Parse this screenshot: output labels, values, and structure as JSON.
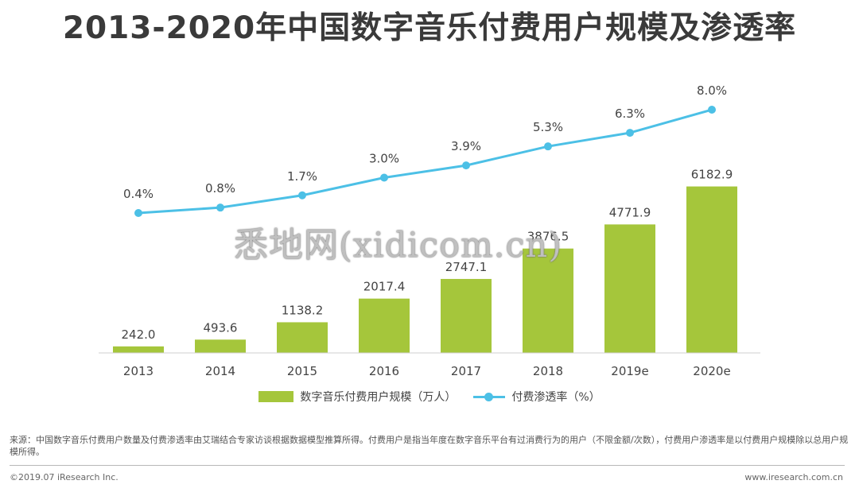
{
  "page": {
    "title": "2013-2020年中国数字音乐付费用户规模及渗透率",
    "watermark": "悉地网(xidicom.cn)",
    "footnote": "来源：中国数字音乐付费用户数量及付费渗透率由艾瑞结合专家访谈根据数据模型推算所得。付费用户是指当年度在数字音乐平台有过消费行为的用户（不限金额/次数），付费用户渗透率是以付费用户规模除以总用户规模所得。",
    "copyright": "©2019.07 iResearch Inc.",
    "site": "www.iresearch.com.cn"
  },
  "chart_data": {
    "type": "bar",
    "title": "2013-2020年中国数字音乐付费用户规模及渗透率",
    "categories": [
      "2013",
      "2014",
      "2015",
      "2016",
      "2017",
      "2018",
      "2019e",
      "2020e"
    ],
    "series": [
      {
        "name": "数字音乐付费用户规模（万人）",
        "type": "bar",
        "color": "#a5c63b",
        "values": [
          242.0,
          493.6,
          1138.2,
          2017.4,
          2747.1,
          3876.5,
          4771.9,
          6182.9
        ],
        "labels": [
          "242.0",
          "493.6",
          "1138.2",
          "2017.4",
          "2747.1",
          "3876.5",
          "4771.9",
          "6182.9"
        ]
      },
      {
        "name": "付费渗透率（%）",
        "type": "line",
        "color": "#4cc0e6",
        "values": [
          0.4,
          0.8,
          1.7,
          3.0,
          3.9,
          5.3,
          6.3,
          8.0
        ],
        "labels": [
          "0.4%",
          "0.8%",
          "1.7%",
          "3.0%",
          "3.9%",
          "5.3%",
          "6.3%",
          "8.0%"
        ]
      }
    ],
    "ylim_bar": [
      0,
      6200
    ],
    "ylim_line": [
      -2.5,
      8.7
    ],
    "grid": false,
    "legend": "bottom"
  }
}
